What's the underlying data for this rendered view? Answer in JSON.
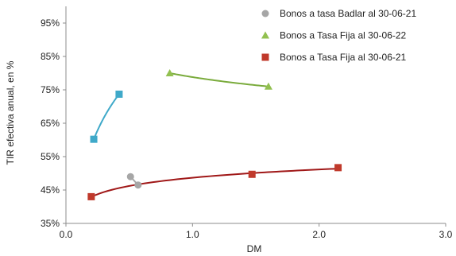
{
  "chart_data": {
    "type": "scatter",
    "xlabel": "DM",
    "ylabel": "TIR efectiva anual, en %",
    "xlim": [
      0.0,
      3.0
    ],
    "ylim": [
      35,
      100
    ],
    "x_ticks": [
      0.0,
      1.0,
      2.0,
      3.0
    ],
    "x_tick_labels": [
      "0.0",
      "1.0",
      "2.0",
      "3.0"
    ],
    "y_ticks": [
      35,
      45,
      55,
      65,
      75,
      85,
      95
    ],
    "y_tick_labels": [
      "35%",
      "45%",
      "55%",
      "65%",
      "75%",
      "85%",
      "95%"
    ],
    "grid": false,
    "legend_position": "top-right",
    "series": [
      {
        "name": "Bonos a tasa Badlar al 30-06-21",
        "marker": "circle",
        "color": "#a6a6a6",
        "points": [
          {
            "x": 0.51,
            "y": 49.0
          },
          {
            "x": 0.57,
            "y": 46.5
          }
        ],
        "trend": {
          "type": "linear",
          "color": "#a6a6a6"
        }
      },
      {
        "name": "Bonos a Tasa Fija al 30-06-22",
        "marker": "triangle",
        "color": "#92c050",
        "points": [
          {
            "x": 0.82,
            "y": 80.0
          },
          {
            "x": 1.6,
            "y": 76.0
          }
        ],
        "trend": {
          "type": "log",
          "color": "#7aab3c"
        }
      },
      {
        "name": "Bonos a Tasa Fija al 30-06-21",
        "marker": "square",
        "color": "#c0392b",
        "points": [
          {
            "x": 0.2,
            "y": 43.0
          },
          {
            "x": 1.47,
            "y": 49.7
          },
          {
            "x": 2.15,
            "y": 51.7
          }
        ],
        "trend": {
          "type": "log",
          "color": "#a01818"
        }
      },
      {
        "name": "",
        "marker": "square",
        "color": "#3fa9c9",
        "points": [
          {
            "x": 0.22,
            "y": 60.2
          },
          {
            "x": 0.42,
            "y": 73.7
          }
        ],
        "trend": {
          "type": "log",
          "color": "#3fa9c9"
        }
      }
    ]
  }
}
